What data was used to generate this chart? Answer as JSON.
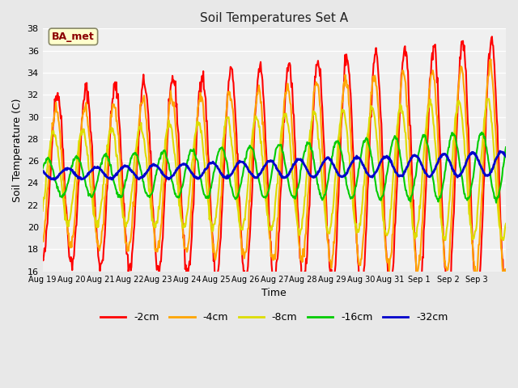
{
  "title": "Soil Temperatures Set A",
  "xlabel": "Time",
  "ylabel": "Soil Temperature (C)",
  "ylim": [
    16,
    38
  ],
  "yticks": [
    16,
    18,
    20,
    22,
    24,
    26,
    28,
    30,
    32,
    34,
    36,
    38
  ],
  "x_labels": [
    "Aug 19",
    "Aug 20",
    "Aug 21",
    "Aug 22",
    "Aug 23",
    "Aug 24",
    "Aug 25",
    "Aug 26",
    "Aug 27",
    "Aug 28",
    "Aug 29",
    "Aug 30",
    "Aug 31",
    "Sep 1",
    "Sep 2",
    "Sep 3"
  ],
  "annotation_text": "BA_met",
  "annotation_color": "#8B0000",
  "annotation_bg": "#FFFFCC",
  "line_colors": {
    "-2cm": "#FF0000",
    "-4cm": "#FFA500",
    "-8cm": "#DDDD00",
    "-16cm": "#00CC00",
    "-32cm": "#0000CC"
  },
  "line_widths": {
    "-2cm": 1.5,
    "-4cm": 1.5,
    "-8cm": 1.5,
    "-16cm": 1.5,
    "-32cm": 2.0
  },
  "bg_color": "#E8E8E8",
  "plot_bg": "#F0F0F0",
  "grid_color": "#FFFFFF",
  "n_days": 16
}
